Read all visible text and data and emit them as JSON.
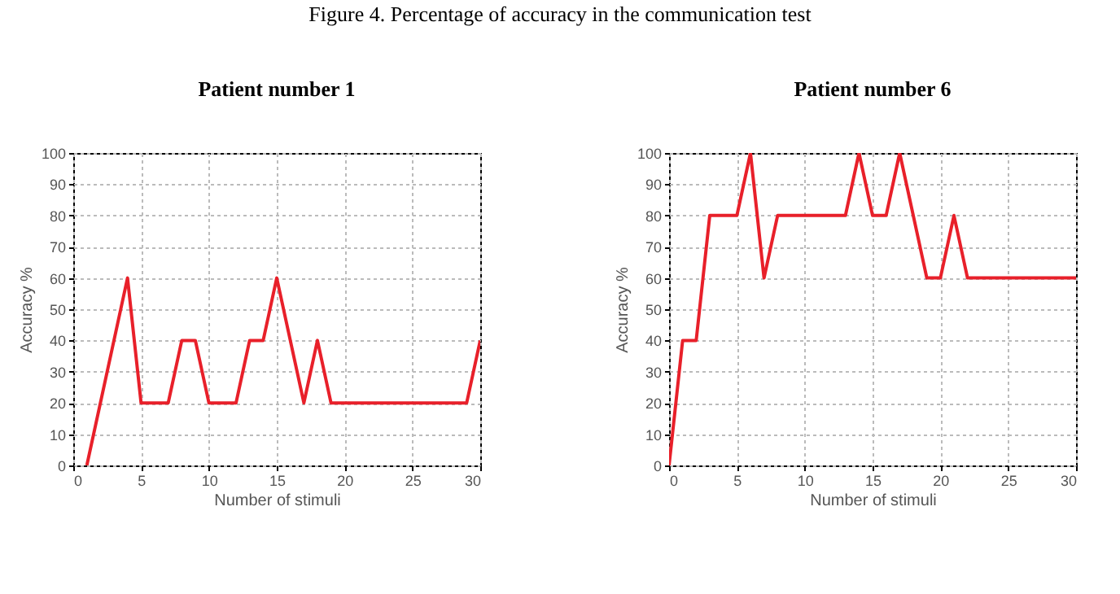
{
  "chart_data": [
    {
      "type": "line",
      "title": "Patient number 1",
      "xlabel": "Number of stimuli",
      "ylabel": "Accuracy %",
      "annotations": [
        "Figure 4. Percentage of accuracy in the communication test"
      ],
      "x": [
        1,
        4,
        5,
        7,
        8,
        9,
        10,
        12,
        13,
        14,
        15,
        17,
        18,
        19,
        29,
        30
      ],
      "series": [
        {
          "color": "#e8202a",
          "values": [
            0,
            60,
            20,
            20,
            40,
            40,
            20,
            20,
            40,
            40,
            60,
            20,
            40,
            20,
            20,
            40
          ]
        }
      ],
      "xlim": [
        0,
        30
      ],
      "xticks": [
        0,
        5,
        10,
        15,
        20,
        25,
        30
      ],
      "ylim": [
        0,
        100
      ],
      "yticks": [
        0,
        10,
        20,
        30,
        40,
        50,
        60,
        70,
        80,
        90,
        100
      ],
      "grid": true,
      "marker": "none",
      "line_style": "solid"
    },
    {
      "type": "line",
      "title": "Patient number 6",
      "xlabel": "Number of stimuli",
      "ylabel": "Accuracy %",
      "x": [
        0,
        1,
        2,
        3,
        5,
        6,
        7,
        8,
        13,
        14,
        15,
        16,
        17,
        19,
        20,
        21,
        22,
        30
      ],
      "series": [
        {
          "color": "#e8202a",
          "values": [
            0,
            40,
            40,
            80,
            80,
            100,
            60,
            80,
            80,
            100,
            80,
            80,
            100,
            60,
            60,
            80,
            60,
            60
          ]
        }
      ],
      "xlim": [
        0,
        30
      ],
      "xticks": [
        0,
        5,
        10,
        15,
        20,
        25,
        30
      ],
      "ylim": [
        0,
        100
      ],
      "yticks": [
        0,
        10,
        20,
        30,
        40,
        50,
        60,
        70,
        80,
        90,
        100
      ],
      "grid": true,
      "marker": "none",
      "line_style": "solid"
    }
  ]
}
